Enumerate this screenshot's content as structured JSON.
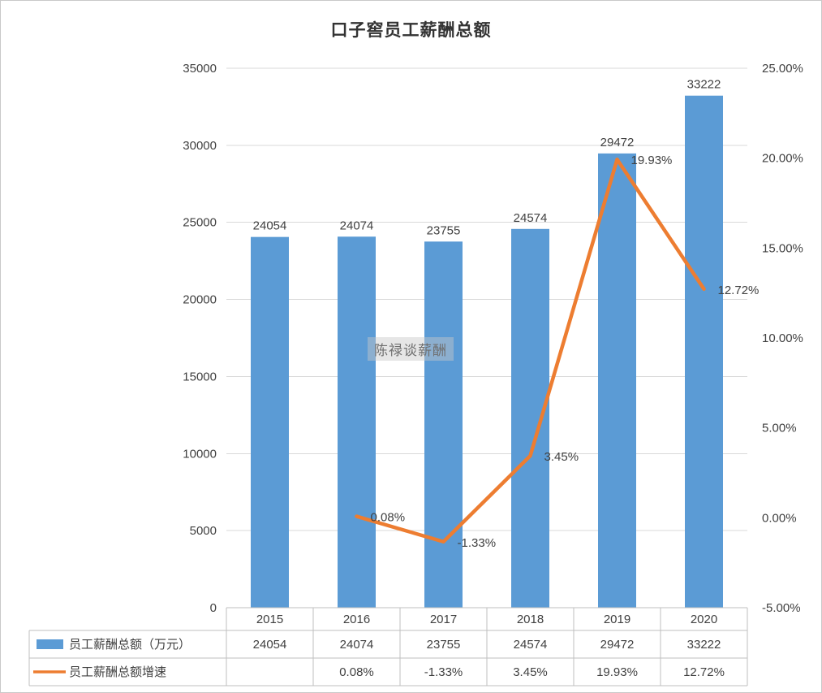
{
  "page": {
    "title": "口子窖员工薪酬总额",
    "watermark": "陈禄谈薪酬"
  },
  "chart_data": {
    "type": "combo",
    "title": "口子窖员工薪酬总额",
    "categories": [
      "2015",
      "2016",
      "2017",
      "2018",
      "2019",
      "2020"
    ],
    "series": [
      {
        "name": "员工薪酬总额（万元）",
        "chart_type": "bar",
        "axis": "left",
        "color": "#5B9BD5",
        "values": [
          24054,
          24074,
          23755,
          24574,
          29472,
          33222
        ],
        "data_labels": [
          "24054",
          "24074",
          "23755",
          "24574",
          "29472",
          "33222"
        ]
      },
      {
        "name": "员工薪酬总额增速",
        "chart_type": "line",
        "axis": "right",
        "color": "#ED7D31",
        "values": [
          null,
          0.08,
          -1.33,
          3.45,
          19.93,
          12.72
        ],
        "data_labels": [
          "",
          "0.08%",
          "-1.33%",
          "3.45%",
          "19.93%",
          "12.72%"
        ]
      }
    ],
    "left_axis": {
      "min": 0,
      "max": 35000,
      "step": 5000,
      "tick_labels": [
        "0",
        "5000",
        "10000",
        "15000",
        "20000",
        "25000",
        "30000",
        "35000"
      ]
    },
    "right_axis": {
      "min": -5,
      "max": 25,
      "step": 5,
      "tick_labels": [
        "-5.00%",
        "0.00%",
        "5.00%",
        "10.00%",
        "15.00%",
        "20.00%",
        "25.00%"
      ]
    },
    "gridlines": true,
    "legend_position": "data-table-left",
    "data_table_rows": [
      {
        "label": "员工薪酬总额（万元）",
        "legend": "bar-swatch",
        "cells": [
          "24054",
          "24074",
          "23755",
          "24574",
          "29472",
          "33222"
        ]
      },
      {
        "label": "员工薪酬总额增速",
        "legend": "line-swatch",
        "cells": [
          "",
          "0.08%",
          "-1.33%",
          "3.45%",
          "19.93%",
          "12.72%"
        ]
      }
    ],
    "colors": {
      "bar": "#5B9BD5",
      "line": "#ED7D31",
      "gridline": "#D9D9D9",
      "table_border": "#BFBFBF",
      "text": "#404040"
    }
  }
}
